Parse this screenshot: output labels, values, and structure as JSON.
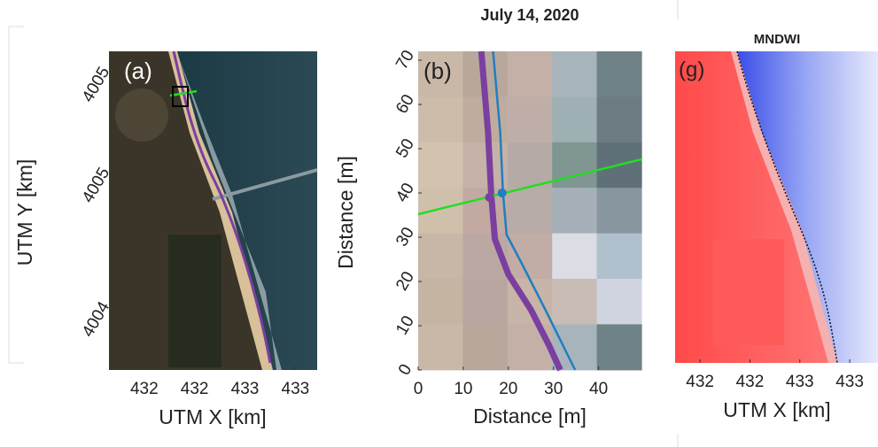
{
  "chart_data": [
    {
      "type": "image",
      "label": "(a)",
      "xlabel": "UTM X [km]",
      "ylabel": "UTM Y [km]",
      "xlim": [
        431.79,
        433.03
      ],
      "xticks": [
        {
          "value": 432.0,
          "label": "432"
        },
        {
          "value": 432.3,
          "label": "432"
        },
        {
          "value": 432.6,
          "label": "433"
        },
        {
          "value": 432.9,
          "label": "433"
        }
      ],
      "ylim": [
        4004.05,
        4005.0
      ],
      "yticks": [
        {
          "value": 4004.9,
          "label": "4005"
        },
        {
          "value": 4004.6,
          "label": "4005"
        },
        {
          "value": 4004.2,
          "label": "4004"
        }
      ]
    },
    {
      "type": "line",
      "title": "July 14, 2020",
      "label": "(b)",
      "xlabel": "Distance [m]",
      "ylabel": "Distance [m]",
      "xlim": [
        0,
        49.5
      ],
      "xticks": [
        0,
        10,
        20,
        30,
        40
      ],
      "ylim": [
        0,
        72
      ],
      "yticks": [
        0,
        10,
        20,
        30,
        40,
        50,
        60,
        70
      ],
      "series": [
        {
          "color": "#7b3fa0",
          "width": 7,
          "x": [
            14,
            15.5,
            16.2,
            17,
            20,
            25,
            29,
            31.5
          ],
          "values": [
            72,
            53.6,
            39.6,
            29.6,
            21.6,
            13.6,
            5.6,
            0
          ]
        },
        {
          "color": "#1f7fc0",
          "width": 2.5,
          "x": [
            16.6,
            18.2,
            18.8,
            19.6,
            23.2,
            28.2,
            34.8
          ],
          "values": [
            72,
            53.6,
            40,
            30.6,
            23.6,
            13.6,
            0
          ]
        },
        {
          "color": "#22dd22",
          "width": 2.5,
          "x": [
            0,
            49.5
          ],
          "values": [
            35.2,
            47.6
          ]
        },
        {
          "color": "#7b3fa0",
          "marker": true,
          "x": [
            15.8
          ],
          "values": [
            39
          ]
        },
        {
          "color": "#1f7fc0",
          "marker": true,
          "x": [
            18.6
          ],
          "values": [
            40
          ]
        }
      ]
    },
    {
      "type": "image",
      "title": "MNDWI",
      "label": "(g)",
      "xlabel": "UTM X [km]",
      "xlim": [
        431.85,
        433.07
      ],
      "xticks": [
        {
          "value": 432.0,
          "label": "432"
        },
        {
          "value": 432.3,
          "label": "432"
        },
        {
          "value": 432.6,
          "label": "433"
        },
        {
          "value": 432.9,
          "label": "433"
        }
      ]
    }
  ]
}
